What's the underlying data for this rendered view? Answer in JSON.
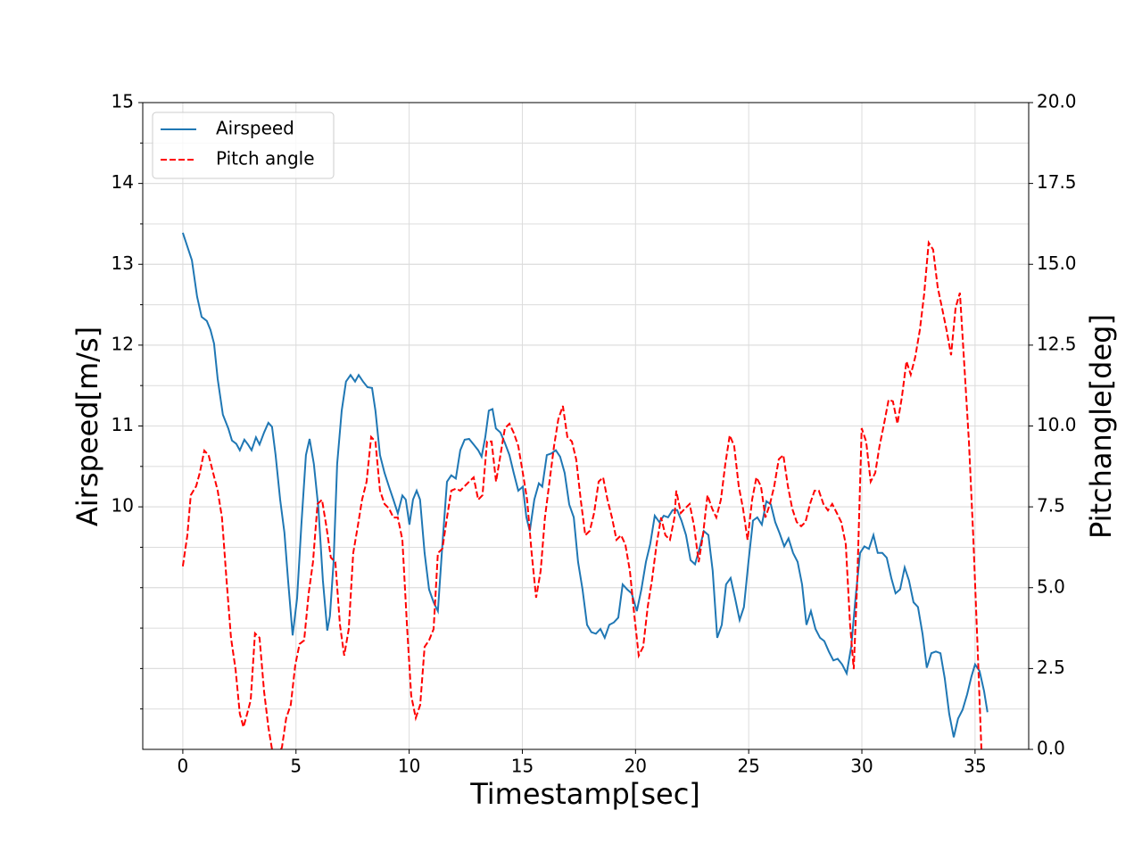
{
  "chart_data": {
    "type": "line",
    "xlabel": "Timestamp[sec]",
    "ylabel": "Airspeed[m/s]",
    "y2label": "Pitchangle[deg]",
    "xlim": [
      -1.77,
      37.37
    ],
    "xticks": [
      0,
      5,
      10,
      15,
      20,
      25,
      30,
      35
    ],
    "ylim": [
      7,
      15
    ],
    "yticks": [
      10,
      11,
      12,
      13,
      14,
      15
    ],
    "yminorticks": [
      7.5,
      8,
      8.5,
      9,
      9.5,
      10.5,
      11.5,
      12.5,
      13.5,
      14.5
    ],
    "y2lim": [
      0,
      20
    ],
    "y2ticks": [
      {
        "value": 0,
        "label": "0.0"
      },
      {
        "value": 2.5,
        "label": "2.5"
      },
      {
        "value": 5,
        "label": "5.0"
      },
      {
        "value": 7.5,
        "label": "7.5"
      },
      {
        "value": 10,
        "label": "10.0"
      },
      {
        "value": 12.5,
        "label": "12.5"
      },
      {
        "value": 15,
        "label": "15.0"
      },
      {
        "value": 17.5,
        "label": "17.5"
      },
      {
        "value": 20,
        "label": "20.0"
      }
    ],
    "grid": true,
    "legend": "upper left",
    "series": [
      {
        "name": "Airspeed",
        "color": "#1f77b4",
        "dash": "solid",
        "x": [
          0,
          0.4,
          0.63,
          0.83,
          1.06,
          1.22,
          1.38,
          1.54,
          1.77,
          2.01,
          2.17,
          2.36,
          2.52,
          2.72,
          2.88,
          3.04,
          3.23,
          3.39,
          3.59,
          3.78,
          3.94,
          4.1,
          4.3,
          4.49,
          4.65,
          4.85,
          5.05,
          5.24,
          5.44,
          5.6,
          5.79,
          5.99,
          6.19,
          6.38,
          6.5,
          6.66,
          6.82,
          7.02,
          7.21,
          7.41,
          7.61,
          7.77,
          7.96,
          8.16,
          8.36,
          8.51,
          8.71,
          8.91,
          9.11,
          9.3,
          9.5,
          9.7,
          9.85,
          10.01,
          10.17,
          10.33,
          10.48,
          10.68,
          10.88,
          11.08,
          11.27,
          11.47,
          11.67,
          11.86,
          12.06,
          12.26,
          12.45,
          12.65,
          12.85,
          13.05,
          13.2,
          13.36,
          13.52,
          13.68,
          13.83,
          14.03,
          14.23,
          14.43,
          14.62,
          14.82,
          15.02,
          15.18,
          15.33,
          15.53,
          15.73,
          15.88,
          16.08,
          16.28,
          16.48,
          16.67,
          16.87,
          17.07,
          17.27,
          17.46,
          17.66,
          17.86,
          18.05,
          18.25,
          18.45,
          18.64,
          18.84,
          19.04,
          19.24,
          19.43,
          19.63,
          19.83,
          20.06,
          20.26,
          20.46,
          20.65,
          20.85,
          21.05,
          21.25,
          21.44,
          21.64,
          21.84,
          22.03,
          22.23,
          22.43,
          22.63,
          22.82,
          23.02,
          23.22,
          23.41,
          23.61,
          23.81,
          24.0,
          24.2,
          24.4,
          24.6,
          24.79,
          24.99,
          25.19,
          25.38,
          25.58,
          25.78,
          25.98,
          26.17,
          26.37,
          26.57,
          26.76,
          26.96,
          27.16,
          27.36,
          27.55,
          27.75,
          27.95,
          28.15,
          28.34,
          28.54,
          28.74,
          28.93,
          29.13,
          29.33,
          29.53,
          29.72,
          29.92,
          30.11,
          30.31,
          30.51,
          30.7,
          30.9,
          31.1,
          31.3,
          31.49,
          31.69,
          31.89,
          32.08,
          32.28,
          32.48,
          32.68,
          32.87,
          33.07,
          33.27,
          33.47,
          33.66,
          33.86,
          34.06,
          34.25,
          34.45,
          34.65,
          34.84,
          35.0,
          35.2,
          35.4,
          35.55
        ],
        "values": [
          13.39,
          13.05,
          12.6,
          12.35,
          12.3,
          12.19,
          12.02,
          11.58,
          11.14,
          10.97,
          10.82,
          10.78,
          10.7,
          10.83,
          10.77,
          10.7,
          10.86,
          10.77,
          10.92,
          11.04,
          10.99,
          10.64,
          10.09,
          9.68,
          9.09,
          8.41,
          8.87,
          9.78,
          10.64,
          10.84,
          10.53,
          9.98,
          9.09,
          8.47,
          8.65,
          9.32,
          10.53,
          11.19,
          11.55,
          11.63,
          11.55,
          11.63,
          11.55,
          11.48,
          11.47,
          11.19,
          10.64,
          10.42,
          10.25,
          10.09,
          9.92,
          10.14,
          10.09,
          9.78,
          10.09,
          10.2,
          10.09,
          9.43,
          8.98,
          8.82,
          8.71,
          9.54,
          10.31,
          10.39,
          10.35,
          10.7,
          10.83,
          10.84,
          10.77,
          10.7,
          10.62,
          10.86,
          11.19,
          11.21,
          10.97,
          10.92,
          10.79,
          10.64,
          10.42,
          10.2,
          10.25,
          9.87,
          9.7,
          10.09,
          10.29,
          10.25,
          10.64,
          10.66,
          10.7,
          10.62,
          10.42,
          10.03,
          9.87,
          9.32,
          8.98,
          8.54,
          8.45,
          8.43,
          8.49,
          8.38,
          8.54,
          8.57,
          8.63,
          9.04,
          8.98,
          8.93,
          8.71,
          8.98,
          9.32,
          9.54,
          9.89,
          9.81,
          9.89,
          9.87,
          9.96,
          9.96,
          9.83,
          9.65,
          9.34,
          9.29,
          9.48,
          9.7,
          9.65,
          9.21,
          8.38,
          8.54,
          9.04,
          9.12,
          8.87,
          8.6,
          8.76,
          9.32,
          9.83,
          9.87,
          9.78,
          10.07,
          10.03,
          9.81,
          9.67,
          9.51,
          9.61,
          9.43,
          9.32,
          9.04,
          8.54,
          8.71,
          8.49,
          8.38,
          8.34,
          8.21,
          8.1,
          8.12,
          8.05,
          7.94,
          8.27,
          8.87,
          9.43,
          9.51,
          9.48,
          9.65,
          9.43,
          9.43,
          9.37,
          9.12,
          8.93,
          8.98,
          9.25,
          9.09,
          8.82,
          8.76,
          8.43,
          8.01,
          8.19,
          8.21,
          8.19,
          7.88,
          7.44,
          7.15,
          7.38,
          7.49,
          7.68,
          7.9,
          8.05,
          7.97,
          7.72,
          7.46
        ]
      },
      {
        "name": "Pitch angle",
        "color": "#ff0000",
        "dash": "dashed",
        "axis": "y2",
        "x": [
          0,
          0.2,
          0.35,
          0.59,
          0.75,
          0.95,
          1.14,
          1.34,
          1.54,
          1.73,
          1.93,
          2.13,
          2.33,
          2.52,
          2.68,
          2.84,
          3.0,
          3.19,
          3.39,
          3.59,
          3.78,
          3.94,
          4.14,
          4.38,
          4.57,
          4.77,
          4.97,
          5.16,
          5.36,
          5.56,
          5.75,
          5.95,
          6.15,
          6.34,
          6.54,
          6.74,
          6.94,
          7.13,
          7.33,
          7.53,
          7.73,
          7.92,
          8.12,
          8.32,
          8.51,
          8.71,
          8.91,
          9.11,
          9.3,
          9.5,
          9.7,
          9.9,
          10.09,
          10.29,
          10.49,
          10.68,
          10.88,
          11.08,
          11.27,
          11.47,
          11.67,
          11.86,
          12.06,
          12.26,
          12.45,
          12.65,
          12.85,
          13.05,
          13.24,
          13.44,
          13.64,
          13.84,
          14.03,
          14.23,
          14.43,
          14.62,
          14.82,
          15.02,
          15.21,
          15.41,
          15.61,
          15.81,
          16.0,
          16.2,
          16.4,
          16.59,
          16.79,
          16.99,
          17.19,
          17.38,
          17.58,
          17.78,
          17.98,
          18.17,
          18.37,
          18.57,
          18.76,
          18.96,
          19.16,
          19.36,
          19.55,
          19.75,
          19.95,
          20.14,
          20.34,
          20.54,
          20.73,
          20.93,
          21.13,
          21.32,
          21.52,
          21.72,
          21.8,
          22.0,
          22.19,
          22.39,
          22.59,
          22.79,
          22.98,
          23.18,
          23.38,
          23.57,
          23.77,
          23.97,
          24.16,
          24.36,
          24.56,
          24.75,
          24.95,
          25.15,
          25.34,
          25.54,
          25.74,
          25.94,
          26.13,
          26.33,
          26.53,
          26.73,
          26.92,
          27.12,
          27.32,
          27.51,
          27.71,
          27.91,
          28.1,
          28.3,
          28.5,
          28.69,
          28.89,
          29.09,
          29.29,
          29.48,
          29.64,
          29.8,
          29.99,
          30.19,
          30.39,
          30.59,
          30.78,
          30.98,
          31.18,
          31.37,
          31.57,
          31.77,
          31.97,
          32.16,
          32.36,
          32.56,
          32.75,
          32.95,
          33.15,
          33.35,
          33.54,
          33.74,
          33.94,
          34.14,
          34.33,
          34.53,
          34.73,
          34.92,
          35.12,
          35.28,
          35.36
        ],
        "values": [
          5.66,
          6.62,
          7.86,
          8.14,
          8.55,
          9.24,
          9.1,
          8.55,
          8.0,
          7.17,
          5.24,
          3.45,
          2.48,
          1.1,
          0.69,
          1.1,
          1.52,
          3.59,
          3.45,
          1.79,
          0.69,
          0,
          -0.28,
          0.06,
          0.97,
          1.38,
          2.62,
          3.26,
          3.37,
          4.83,
          5.79,
          7.59,
          7.72,
          6.9,
          5.93,
          5.79,
          3.86,
          2.9,
          3.72,
          6.07,
          6.9,
          7.72,
          8.28,
          9.66,
          9.52,
          8.0,
          7.59,
          7.45,
          7.17,
          7.17,
          6.48,
          3.86,
          1.66,
          0.97,
          1.38,
          3.17,
          3.37,
          3.72,
          6.07,
          6.21,
          7.17,
          8.0,
          8.06,
          8.0,
          8.14,
          8.28,
          8.41,
          7.72,
          7.86,
          9.52,
          9.52,
          8.28,
          9.1,
          9.93,
          10.07,
          9.79,
          9.38,
          8.55,
          7.72,
          6.07,
          4.69,
          5.52,
          7.17,
          8.28,
          9.38,
          10.21,
          10.62,
          9.66,
          9.52,
          8.97,
          7.72,
          6.62,
          6.76,
          7.31,
          8.28,
          8.41,
          7.72,
          7.17,
          6.48,
          6.62,
          6.34,
          5.52,
          4.14,
          2.9,
          3.17,
          4.41,
          5.24,
          6.34,
          7.17,
          6.62,
          6.48,
          7.17,
          8.0,
          7.31,
          7.45,
          7.59,
          6.9,
          5.79,
          6.62,
          7.86,
          7.45,
          7.17,
          7.72,
          8.83,
          9.71,
          9.38,
          8.14,
          7.45,
          6.48,
          7.72,
          8.41,
          8.14,
          7.17,
          7.59,
          8.14,
          8.97,
          9.1,
          8.14,
          7.45,
          7.03,
          6.9,
          7.03,
          7.59,
          8.0,
          8.0,
          7.59,
          7.39,
          7.59,
          7.31,
          7.03,
          6.34,
          3.86,
          2.48,
          5.24,
          9.93,
          9.52,
          8.28,
          8.55,
          9.38,
          10.07,
          10.81,
          10.76,
          10.07,
          10.9,
          12.0,
          11.59,
          12.14,
          12.97,
          14.07,
          15.67,
          15.45,
          14.29,
          13.66,
          12.97,
          12.19,
          13.66,
          14.12,
          11.86,
          9.52,
          6.62,
          3.03,
          0,
          -0.83
        ]
      }
    ]
  }
}
